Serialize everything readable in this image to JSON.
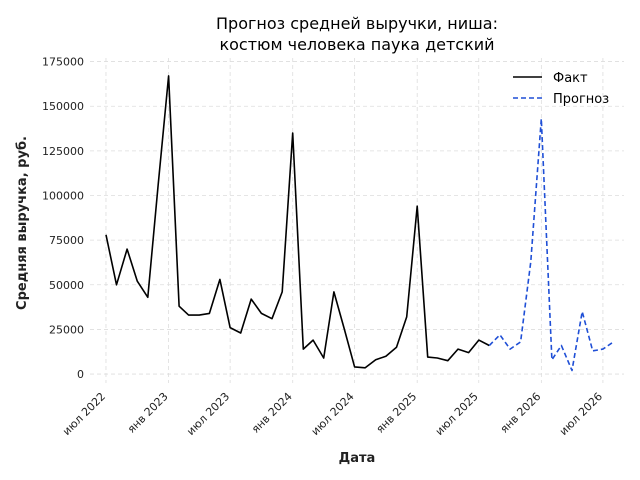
{
  "chart_data": {
    "type": "line",
    "title_lines": [
      "Прогноз средней выручки, ниша:",
      "костюм человека паука детский"
    ],
    "xlabel": "Дата",
    "ylabel": "Средняя выручка, руб.",
    "ylim": [
      -5000,
      177000
    ],
    "yticks": [
      0,
      25000,
      50000,
      75000,
      100000,
      125000,
      150000,
      175000
    ],
    "yticklabels": [
      "0",
      "25000",
      "50000",
      "75000",
      "100000",
      "125000",
      "150000",
      "175000"
    ],
    "xlim": [
      "2022-05-15",
      "2026-09-01"
    ],
    "xticks": [
      "2022-07-01",
      "2023-01-01",
      "2023-07-01",
      "2024-01-01",
      "2024-07-01",
      "2025-01-01",
      "2025-07-01",
      "2026-01-01",
      "2026-07-01"
    ],
    "xticklabels": [
      "июл 2022",
      "янв 2023",
      "июл 2023",
      "янв 2024",
      "июл 2024",
      "янв 2025",
      "июл 2025",
      "янв 2026",
      "июл 2026"
    ],
    "grid": true,
    "legend_position": "top-right",
    "series": [
      {
        "name": "Факт",
        "color": "#000000",
        "style": "solid",
        "x": [
          "2022-07-01",
          "2022-08-01",
          "2022-09-01",
          "2022-10-01",
          "2022-11-01",
          "2022-12-01",
          "2023-01-01",
          "2023-02-01",
          "2023-03-01",
          "2023-04-01",
          "2023-05-01",
          "2023-06-01",
          "2023-07-01",
          "2023-08-01",
          "2023-09-01",
          "2023-10-01",
          "2023-11-01",
          "2023-12-01",
          "2024-01-01",
          "2024-02-01",
          "2024-03-01",
          "2024-04-01",
          "2024-05-01",
          "2024-06-01",
          "2024-07-01",
          "2024-08-01",
          "2024-09-01",
          "2024-10-01",
          "2024-11-01",
          "2024-12-01",
          "2025-01-01",
          "2025-02-01",
          "2025-03-01",
          "2025-04-01",
          "2025-05-01",
          "2025-06-01",
          "2025-07-01",
          "2025-08-01"
        ],
        "y": [
          78000,
          50000,
          70000,
          52000,
          43000,
          105000,
          167000,
          38000,
          33000,
          33000,
          34000,
          53000,
          26000,
          23000,
          42000,
          34000,
          31000,
          46000,
          135000,
          14000,
          19000,
          9000,
          46000,
          25000,
          4000,
          3500,
          8000,
          10000,
          15000,
          32000,
          94000,
          9500,
          9000,
          7500,
          14000,
          12000,
          19000,
          16000
        ]
      },
      {
        "name": "Прогноз",
        "color": "#1f4fd6",
        "style": "dashed",
        "x": [
          "2025-08-01",
          "2025-09-01",
          "2025-10-01",
          "2025-11-01",
          "2025-12-01",
          "2026-01-01",
          "2026-02-01",
          "2026-03-01",
          "2026-04-01",
          "2026-05-01",
          "2026-06-01",
          "2026-07-01",
          "2026-08-01"
        ],
        "y": [
          16000,
          22000,
          14000,
          18000,
          63000,
          143000,
          8000,
          16000,
          2000,
          35000,
          13000,
          14000,
          18000
        ]
      }
    ]
  }
}
